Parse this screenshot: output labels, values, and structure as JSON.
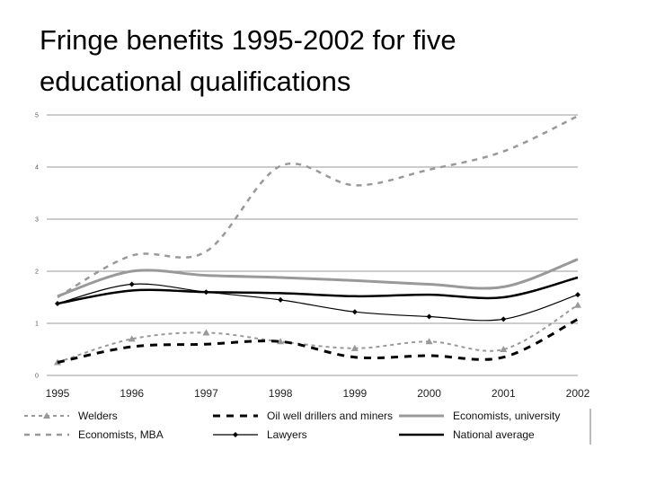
{
  "slide": {
    "title_line1": "Fringe benefits 1995-2002 for five",
    "title_line2": "educational qualifications"
  },
  "chart_data": {
    "type": "line",
    "title": "Fringe benefits 1995-2002 for five educational qualifications",
    "xlabel": "",
    "ylabel": "",
    "categories": [
      "1995",
      "1996",
      "1997",
      "1998",
      "1999",
      "2000",
      "2001",
      "2002"
    ],
    "yticks": [
      "0",
      "1",
      "2",
      "3",
      "4",
      "5"
    ],
    "ylim": [
      0,
      5
    ],
    "grid": true,
    "legend_position": "bottom",
    "series": [
      {
        "name": "Welders",
        "values": [
          0.25,
          0.7,
          0.82,
          0.65,
          0.52,
          0.65,
          0.5,
          1.35
        ],
        "color": "#999999",
        "style": "dotted",
        "marker": "triangle"
      },
      {
        "name": "Oil well drillers and miners",
        "values": [
          0.25,
          0.55,
          0.6,
          0.65,
          0.35,
          0.38,
          0.35,
          1.08
        ],
        "color": "#000000",
        "style": "dashed",
        "marker": "none"
      },
      {
        "name": "Economists, university",
        "values": [
          1.52,
          2.0,
          1.92,
          1.88,
          1.82,
          1.75,
          1.7,
          2.23
        ],
        "color": "#999999",
        "style": "solid",
        "marker": "none"
      },
      {
        "name": "Economists, MBA",
        "values": [
          1.5,
          2.3,
          2.38,
          4.02,
          3.65,
          3.95,
          4.3,
          4.98
        ],
        "color": "#999999",
        "style": "dashed",
        "marker": "none"
      },
      {
        "name": "Lawyers",
        "values": [
          1.38,
          1.75,
          1.6,
          1.45,
          1.22,
          1.13,
          1.08,
          1.55
        ],
        "color": "#000000",
        "style": "solid",
        "marker": "diamond"
      },
      {
        "name": "National average",
        "values": [
          1.38,
          1.63,
          1.6,
          1.58,
          1.52,
          1.55,
          1.5,
          1.88
        ],
        "color": "#000000",
        "style": "solid-thick",
        "marker": "none"
      }
    ]
  }
}
